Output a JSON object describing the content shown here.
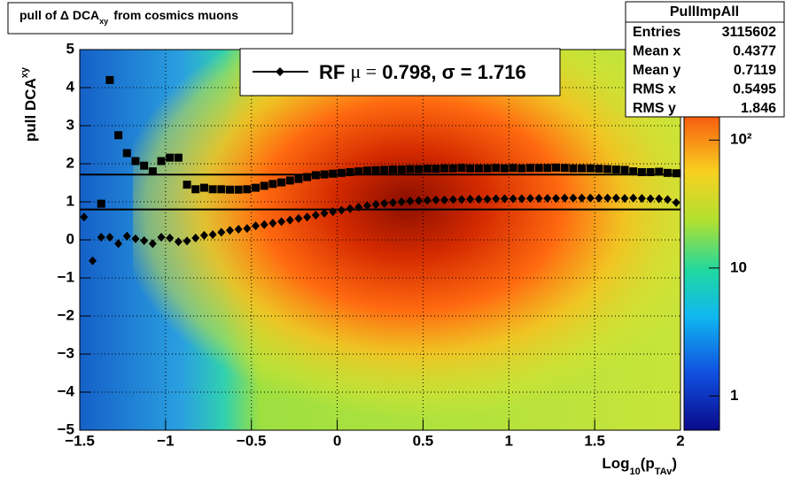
{
  "chart_data": {
    "type": "scatter",
    "title": [
      "pull of Δ DCA",
      "xy",
      "from cosmics muons"
    ],
    "y_label": [
      "pull DCA",
      "xy"
    ],
    "x_label": [
      "Log",
      "10",
      "(p",
      "TAv",
      ")"
    ],
    "xlim": [
      -1.5,
      2
    ],
    "xticks": [
      {
        "value": -1.5,
        "label": "−1.5"
      },
      {
        "value": -1,
        "label": "−1"
      },
      {
        "value": -0.5,
        "label": "−0.5"
      },
      0,
      0.5,
      1,
      1.5,
      2
    ],
    "ylim": [
      -5,
      5
    ],
    "yticks": [
      {
        "value": -5,
        "label": "−5"
      },
      {
        "value": -4,
        "label": "−4"
      },
      {
        "value": -3,
        "label": "−3"
      },
      {
        "value": -2,
        "label": "−2"
      },
      {
        "value": -1,
        "label": "−1"
      },
      0,
      1,
      2,
      3,
      4,
      5
    ],
    "grid": true,
    "zlim": [
      0.54,
      510
    ],
    "zscale": "log",
    "zticks": [
      1,
      10,
      {
        "value": 100,
        "label": "10²"
      }
    ],
    "x": [
      -1.475,
      -1.425,
      -1.375,
      -1.325,
      -1.275,
      -1.225,
      -1.175,
      -1.125,
      -1.075,
      -1.025,
      -0.975,
      -0.925,
      -0.875,
      -0.825,
      -0.775,
      -0.725,
      -0.675,
      -0.625,
      -0.575,
      -0.525,
      -0.475,
      -0.425,
      -0.375,
      -0.325,
      -0.275,
      -0.225,
      -0.175,
      -0.125,
      -0.075,
      -0.025,
      0.025,
      0.075,
      0.125,
      0.175,
      0.225,
      0.275,
      0.325,
      0.375,
      0.425,
      0.475,
      0.525,
      0.575,
      0.625,
      0.675,
      0.725,
      0.775,
      0.825,
      0.875,
      0.925,
      0.975,
      1.025,
      1.075,
      1.125,
      1.175,
      1.225,
      1.275,
      1.325,
      1.375,
      1.425,
      1.475,
      1.525,
      1.575,
      1.625,
      1.675,
      1.725,
      1.775,
      1.825,
      1.875,
      1.925,
      1.975
    ],
    "series": [
      {
        "marker": "square",
        "color": "#000000",
        "values": [
          null,
          null,
          0.95,
          4.2,
          2.75,
          2.28,
          2.07,
          1.95,
          1.8,
          2.07,
          2.16,
          2.16,
          1.45,
          1.33,
          1.37,
          1.33,
          1.33,
          1.32,
          1.32,
          1.33,
          1.37,
          1.42,
          1.47,
          1.51,
          1.56,
          1.6,
          1.65,
          1.7,
          1.72,
          1.74,
          1.76,
          1.78,
          1.8,
          1.82,
          1.83,
          1.84,
          1.85,
          1.85,
          1.86,
          1.86,
          1.87,
          1.87,
          1.88,
          1.88,
          1.89,
          1.88,
          1.88,
          1.88,
          1.89,
          1.88,
          1.89,
          1.88,
          1.89,
          1.89,
          1.89,
          1.9,
          1.89,
          1.88,
          1.88,
          1.88,
          1.87,
          1.86,
          1.85,
          1.84,
          1.8,
          1.78,
          1.78,
          1.79,
          1.76,
          1.75
        ]
      },
      {
        "marker": "diamond",
        "color": "#000000",
        "values": [
          0.6,
          -0.55,
          0.07,
          0.07,
          -0.1,
          0.1,
          0.03,
          -0.02,
          -0.1,
          0.07,
          0.05,
          -0.05,
          -0.03,
          0.05,
          0.12,
          0.14,
          0.2,
          0.25,
          0.28,
          0.3,
          0.37,
          0.4,
          0.44,
          0.48,
          0.52,
          0.56,
          0.6,
          0.65,
          0.7,
          0.74,
          0.78,
          0.82,
          0.86,
          0.9,
          0.93,
          0.96,
          0.98,
          1.0,
          1.02,
          1.03,
          1.04,
          1.05,
          1.05,
          1.06,
          1.06,
          1.07,
          1.07,
          1.07,
          1.08,
          1.08,
          1.08,
          1.08,
          1.09,
          1.09,
          1.09,
          1.09,
          1.1,
          1.1,
          1.1,
          1.1,
          1.1,
          1.1,
          1.1,
          1.09,
          1.1,
          1.09,
          1.08,
          1.08,
          1.06,
          0.98
        ]
      }
    ],
    "fit": {
      "mu": 0.798,
      "sigma": 1.716
    },
    "legend_parts": [
      "RF",
      "μ =",
      ", σ ="
    ],
    "stats": {
      "title": "PullImpAll",
      "rows": [
        {
          "name": "Entries",
          "value": 3115602
        },
        {
          "name": "Mean x",
          "value": 0.4377
        },
        {
          "name": "Mean y",
          "value": 0.7119
        },
        {
          "name": "RMS x",
          "value": 0.5495
        },
        {
          "name": "RMS y",
          "value": 1.846
        }
      ]
    }
  }
}
